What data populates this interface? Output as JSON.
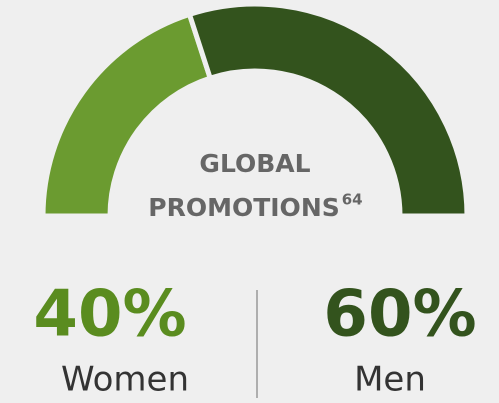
{
  "chart_data": {
    "type": "pie",
    "half": true,
    "title": [
      "GLOBAL",
      "PROMOTIONS"
    ],
    "title_footnote": "64",
    "categories": [
      "Women",
      "Men"
    ],
    "values": [
      40,
      60
    ],
    "value_labels": [
      "40%",
      "60%"
    ],
    "colors": [
      "#6b9b30",
      "#33531d"
    ]
  }
}
